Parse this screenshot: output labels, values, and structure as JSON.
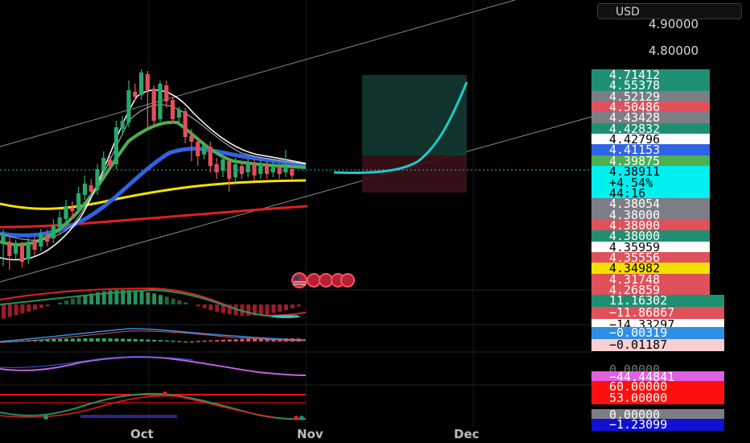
{
  "currency": "USD",
  "price_axis": {
    "top_labels": [
      "4.90000",
      "4.80000"
    ]
  },
  "price_tags": [
    {
      "text": "4.71412",
      "bg": "#1f8f73",
      "fg": "#ffffff"
    },
    {
      "text": "4.55378",
      "bg": "#1f8f73",
      "fg": "#ffffff"
    },
    {
      "text": "4.52129",
      "bg": "#7d7d85",
      "fg": "#ffffff"
    },
    {
      "text": "4.50486",
      "bg": "#e0505a",
      "fg": "#ffffff"
    },
    {
      "text": "4.43428",
      "bg": "#7d7d85",
      "fg": "#ffffff"
    },
    {
      "text": "4.42832",
      "bg": "#1f8f73",
      "fg": "#ffffff"
    },
    {
      "text": "4.42796",
      "bg": "#ffffff",
      "fg": "#000000"
    },
    {
      "text": "4.41153",
      "bg": "#2f63e6",
      "fg": "#ffffff"
    },
    {
      "text": "4.39875",
      "bg": "#4caf50",
      "fg": "#ffffff"
    },
    {
      "text": "4.38911",
      "bg": "#00f0f0",
      "fg": "#000000"
    },
    {
      "text": "+4.54%",
      "bg": "#00f0f0",
      "fg": "#000000"
    },
    {
      "text": "44:16",
      "bg": "#00f0f0",
      "fg": "#000000"
    },
    {
      "text": "4.38054",
      "bg": "#7d7d85",
      "fg": "#ffffff"
    },
    {
      "text": "4.38000",
      "bg": "#7d7d85",
      "fg": "#ffffff"
    },
    {
      "text": "4.38000",
      "bg": "#e0505a",
      "fg": "#ffffff"
    },
    {
      "text": "4.38000",
      "bg": "#1f8f73",
      "fg": "#ffffff"
    },
    {
      "text": "4.35959",
      "bg": "#ffffff",
      "fg": "#000000"
    },
    {
      "text": "4.35556",
      "bg": "#e0505a",
      "fg": "#ffffff"
    },
    {
      "text": "4.34982",
      "bg": "#f5e100",
      "fg": "#000000"
    },
    {
      "text": "4.31748",
      "bg": "#e0505a",
      "fg": "#ffffff"
    },
    {
      "text": "4.26859",
      "bg": "#e0505a",
      "fg": "#ffffff"
    }
  ],
  "indicator_tags": [
    {
      "text": "11.16302",
      "bg": "#1f8f73",
      "fg": "#ffffff"
    },
    {
      "text": "−11.86867",
      "bg": "#e0505a",
      "fg": "#ffffff"
    },
    {
      "text": "−14.33297",
      "bg": "#ffffff",
      "fg": "#000000"
    },
    {
      "text": "−0.00319",
      "bg": "#2f8fe6",
      "fg": "#ffffff"
    },
    {
      "text": "−0.01187",
      "bg": "#f9cfd2",
      "fg": "#000000"
    },
    {
      "text": "0.00000",
      "bg": "#000000",
      "fg": "#777777"
    },
    {
      "text": "−44.44841",
      "bg": "#e060e0",
      "fg": "#ffffff"
    },
    {
      "text": "60.00000",
      "bg": "#ff1010",
      "fg": "#ffffff"
    },
    {
      "text": "53.00000",
      "bg": "#ff1010",
      "fg": "#ffffff"
    },
    {
      "text": "0.00000",
      "bg": "#7d7d85",
      "fg": "#ffffff"
    },
    {
      "text": "−1.23099",
      "bg": "#1010d0",
      "fg": "#ffffff"
    }
  ],
  "time_axis": [
    "Oct",
    "Nov",
    "Dec"
  ],
  "icons": [
    "us-flag-icon"
  ]
}
